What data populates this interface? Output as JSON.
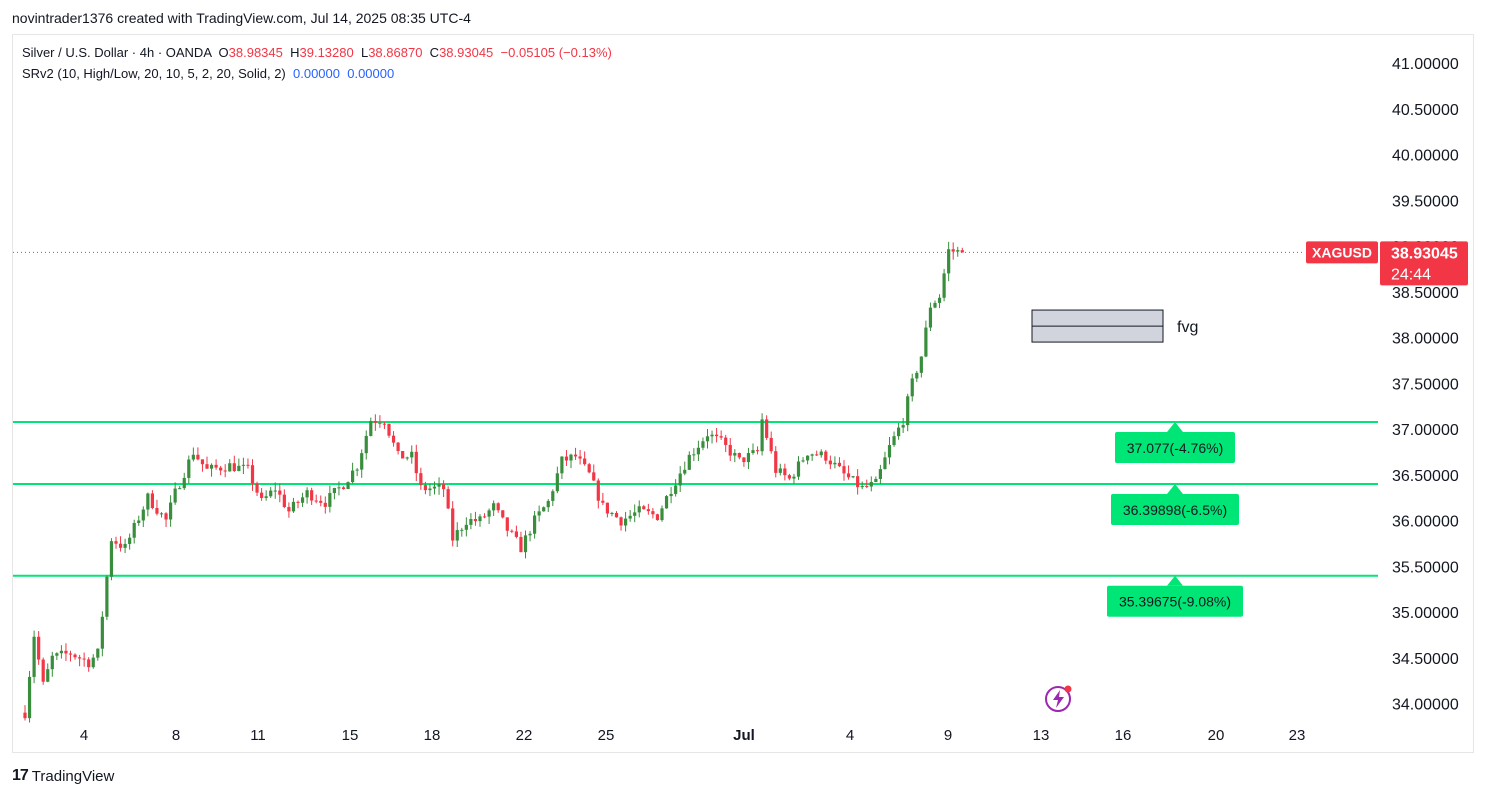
{
  "header": {
    "credit": "novintrader1376 created with TradingView.com, Jul 14, 2025 08:35 UTC-4"
  },
  "legend": {
    "symbol_line": "Silver / U.S. Dollar · 4h · OANDA",
    "o_label": "O",
    "o_value": "38.98345",
    "h_label": "H",
    "h_value": "39.13280",
    "l_label": "L",
    "l_value": "38.86870",
    "c_label": "C",
    "c_value": "38.93045",
    "change": "−0.05105 (−0.13%)",
    "indicator": "SRv2 (10, High/Low, 20, 10, 5, 2, 20, Solid, 2)",
    "ind_value1": "0.00000",
    "ind_value2": "0.00000"
  },
  "price_tag": {
    "symbol": "XAGUSD",
    "price": "38.93045",
    "countdown": "24:44"
  },
  "footer": {
    "brand": "TradingView"
  },
  "colors": {
    "up": "#26a69a",
    "up_body": "#388e3c",
    "down": "#f23645",
    "level_line": "#00e676",
    "level_label_bg": "#00e676",
    "price_line": "#f23645"
  },
  "chart_data": {
    "type": "candlestick",
    "symbol": "XAGUSD",
    "timeframe": "4h",
    "y_ticks": [
      "41.00000",
      "40.50000",
      "40.00000",
      "39.50000",
      "39.00000",
      "38.50000",
      "38.00000",
      "37.50000",
      "37.00000",
      "36.50000",
      "36.00000",
      "35.50000",
      "35.00000",
      "34.50000",
      "34.00000"
    ],
    "ylim": [
      33.85,
      41.35
    ],
    "x_ticks": [
      "4",
      "8",
      "11",
      "15",
      "18",
      "22",
      "25",
      "Jul",
      "4",
      "9",
      "13",
      "16",
      "20",
      "23"
    ],
    "levels": [
      {
        "price": 37.077,
        "label": "37.077(-4.76%)"
      },
      {
        "price": 36.39898,
        "label": "36.39898(-6.5%)"
      },
      {
        "price": 35.39675,
        "label": "35.39675(-9.08%)"
      }
    ],
    "fvg": {
      "label": "fvg",
      "top": 38.3,
      "bottom": 37.95
    },
    "last_price": 38.93045,
    "candle_count": 230,
    "path": [
      [
        0,
        33.9
      ],
      [
        2,
        34.75
      ],
      [
        4,
        34.2
      ],
      [
        6,
        34.5
      ],
      [
        10,
        34.55
      ],
      [
        14,
        34.45
      ],
      [
        16,
        34.55
      ],
      [
        19,
        35.8
      ],
      [
        22,
        35.7
      ],
      [
        27,
        36.25
      ],
      [
        31,
        36.0
      ],
      [
        33,
        36.3
      ],
      [
        37,
        36.75
      ],
      [
        40,
        36.55
      ],
      [
        45,
        36.6
      ],
      [
        49,
        36.55
      ],
      [
        52,
        36.2
      ],
      [
        55,
        36.35
      ],
      [
        58,
        36.1
      ],
      [
        62,
        36.3
      ],
      [
        66,
        36.2
      ],
      [
        70,
        36.4
      ],
      [
        73,
        36.6
      ],
      [
        76,
        37.1
      ],
      [
        79,
        37.1
      ],
      [
        82,
        36.7
      ],
      [
        85,
        36.7
      ],
      [
        87,
        36.35
      ],
      [
        92,
        36.35
      ],
      [
        94,
        35.8
      ],
      [
        97,
        36.0
      ],
      [
        100,
        36.0
      ],
      [
        103,
        36.15
      ],
      [
        106,
        35.9
      ],
      [
        109,
        35.7
      ],
      [
        112,
        36.0
      ],
      [
        115,
        36.2
      ],
      [
        118,
        36.65
      ],
      [
        121,
        36.7
      ],
      [
        124,
        36.5
      ],
      [
        127,
        36.15
      ],
      [
        131,
        36.0
      ],
      [
        135,
        36.1
      ],
      [
        139,
        36.05
      ],
      [
        142,
        36.35
      ],
      [
        146,
        36.7
      ],
      [
        150,
        36.95
      ],
      [
        153,
        36.85
      ],
      [
        157,
        36.65
      ],
      [
        161,
        36.75
      ],
      [
        162,
        37.1
      ],
      [
        165,
        36.55
      ],
      [
        168,
        36.45
      ],
      [
        172,
        36.75
      ],
      [
        176,
        36.7
      ],
      [
        180,
        36.5
      ],
      [
        184,
        36.35
      ],
      [
        187,
        36.4
      ],
      [
        190,
        36.8
      ],
      [
        193,
        37.1
      ],
      [
        195,
        37.5
      ],
      [
        197,
        37.8
      ],
      [
        199,
        38.35
      ],
      [
        201,
        38.45
      ],
      [
        203,
        38.95
      ],
      [
        206,
        38.93
      ]
    ]
  }
}
